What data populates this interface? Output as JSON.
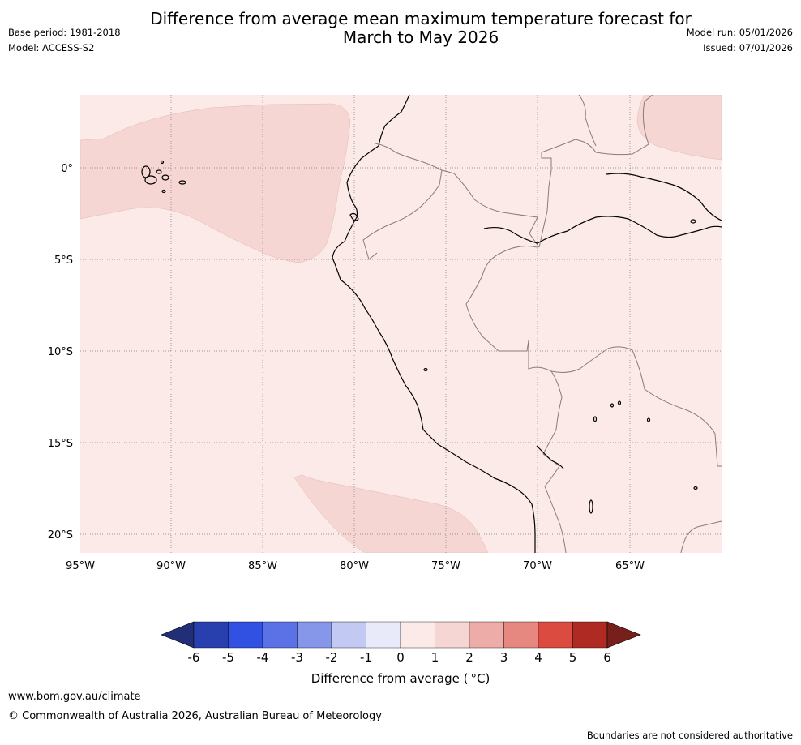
{
  "header": {
    "title_line1": "Difference from average mean maximum temperature forecast for",
    "title_line2": "March to May 2026",
    "base_period": "Base period: 1981-2018",
    "model": "Model: ACCESS-S2",
    "model_run": "Model run: 05/01/2026",
    "issued": "Issued: 07/01/2026"
  },
  "map": {
    "lat_labels": [
      "0°",
      "5°S",
      "10°S",
      "15°S",
      "20°S"
    ],
    "lon_labels": [
      "95°W",
      "90°W",
      "85°W",
      "80°W",
      "75°W",
      "70°W",
      "65°W"
    ],
    "colors": {
      "background": "#fbeae8",
      "anomaly_1_2": "#f5d6d3",
      "coastline": "#000000",
      "border": "#8a7a7a",
      "gridline": "#7a7a7a"
    }
  },
  "colorbar": {
    "ticks": [
      "-6",
      "-5",
      "-4",
      "-3",
      "-2",
      "-1",
      "0",
      "1",
      "2",
      "3",
      "4",
      "5",
      "6"
    ],
    "colors": [
      "#232e78",
      "#283fae",
      "#3051e1",
      "#5a72e6",
      "#8697ea",
      "#c2c9f3",
      "#e8eafa",
      "#fbeae8",
      "#f5d6d3",
      "#eeaca8",
      "#e78880",
      "#db4b40",
      "#ae2a22",
      "#771f1a"
    ],
    "label": "Difference from average ( °C)"
  },
  "footer": {
    "website": "www.bom.gov.au/climate",
    "copyright": "© Commonwealth of Australia 2026, Australian Bureau of Meteorology",
    "disclaimer": "Boundaries are not considered authoritative"
  }
}
